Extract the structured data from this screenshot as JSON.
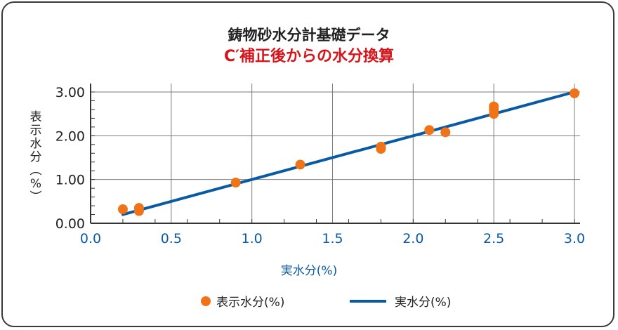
{
  "chart_data": {
    "type": "scatter",
    "title": "鋳物砂水分計基礎データ",
    "subtitle": "C′補正後からの水分換算",
    "xlabel": "実水分(%)",
    "ylabel": "表示水分(%)",
    "xlim": [
      0.0,
      3.0
    ],
    "ylim": [
      0.0,
      3.0
    ],
    "x_ticks": [
      "0.0",
      "0.5",
      "1.0",
      "1.5",
      "2.0",
      "2.5",
      "3.0"
    ],
    "y_ticks": [
      "0.00",
      "1.00",
      "2.00",
      "3.00"
    ],
    "grid": true,
    "legend_position": "bottom",
    "series": [
      {
        "name": "表示水分(%)",
        "kind": "scatter",
        "color": "#f07318",
        "points": [
          {
            "x": 0.2,
            "y": 0.32
          },
          {
            "x": 0.3,
            "y": 0.35
          },
          {
            "x": 0.3,
            "y": 0.28
          },
          {
            "x": 0.9,
            "y": 0.93
          },
          {
            "x": 1.3,
            "y": 1.34
          },
          {
            "x": 1.8,
            "y": 1.75
          },
          {
            "x": 1.8,
            "y": 1.7
          },
          {
            "x": 2.1,
            "y": 2.13
          },
          {
            "x": 2.2,
            "y": 2.08
          },
          {
            "x": 2.5,
            "y": 2.67
          },
          {
            "x": 2.5,
            "y": 2.6
          },
          {
            "x": 2.5,
            "y": 2.5
          },
          {
            "x": 3.0,
            "y": 2.97
          }
        ]
      },
      {
        "name": "実水分(%)",
        "kind": "line",
        "color": "#0a5aa3",
        "points": [
          {
            "x": 0.2,
            "y": 0.2
          },
          {
            "x": 3.0,
            "y": 3.0
          }
        ]
      }
    ]
  }
}
